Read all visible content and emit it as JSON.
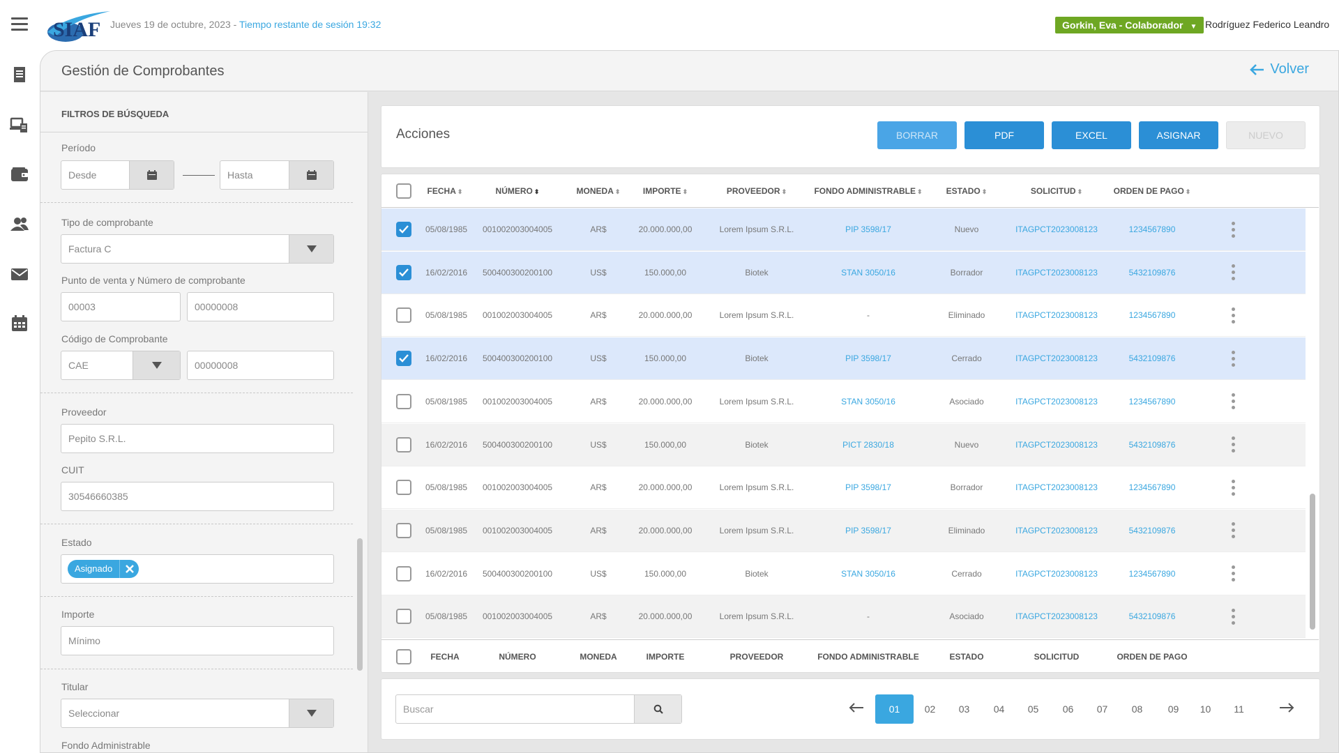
{
  "header": {
    "logo_text": "SIAF",
    "date": "Jueves 19 de octubre, 2023",
    "separator": " - ",
    "session": "Tiempo restante de sesión 19:32",
    "role_badge": "Gorkin, Eva - Colaborador",
    "user_name": "Rodríguez Federico Leandro"
  },
  "page": {
    "title": "Gestión de Comprobantes",
    "back_label": "Volver"
  },
  "filters": {
    "heading": "FILTROS DE BÚSQUEDA",
    "periodo_label": "Período",
    "desde_placeholder": "Desde",
    "hasta_placeholder": "Hasta",
    "tipo_label": "Tipo de comprobante",
    "tipo_value": "Factura C",
    "punto_label": "Punto de venta y Número de comprobante",
    "punto_value": "00003",
    "numero_value": "00000008",
    "codigo_label": "Código de Comprobante",
    "codigo_value": "CAE",
    "codigo_num_value": "00000008",
    "proveedor_label": "Proveedor",
    "proveedor_value": "Pepito S.R.L.",
    "cuit_label": "CUIT",
    "cuit_value": "30546660385",
    "estado_label": "Estado",
    "estado_tag": "Asignado",
    "importe_label": "Importe",
    "importe_placeholder": "Mínimo",
    "titular_label": "Titular",
    "titular_value": "Seleccionar",
    "fondo_label": "Fondo Administrable"
  },
  "actions": {
    "title": "Acciones",
    "borrar": "BORRAR",
    "pdf": "PDF",
    "excel": "EXCEL",
    "asignar": "ASIGNAR",
    "nuevo": "NUEVO"
  },
  "table": {
    "columns": [
      "FECHA",
      "NÚMERO",
      "MONEDA",
      "IMPORTE",
      "PROVEEDOR",
      "FONDO ADMINISTRABLE",
      "ESTADO",
      "SOLICITUD",
      "ORDEN DE PAGO"
    ],
    "rows": [
      {
        "checked": true,
        "fecha": "05/08/1985",
        "numero": "001002003004005",
        "moneda": "AR$",
        "importe": "20.000.000,00",
        "proveedor": "Lorem Ipsum S.R.L.",
        "fondo": "PIP 3598/17",
        "estado": "Nuevo",
        "solicitud": "ITAGPCT2023008123",
        "orden": "1234567890"
      },
      {
        "checked": true,
        "fecha": "16/02/2016",
        "numero": "500400300200100",
        "moneda": "US$",
        "importe": "150.000,00",
        "proveedor": "Biotek",
        "fondo": "STAN 3050/16",
        "estado": "Borrador",
        "solicitud": "ITAGPCT2023008123",
        "orden": "5432109876"
      },
      {
        "checked": false,
        "fecha": "05/08/1985",
        "numero": "001002003004005",
        "moneda": "AR$",
        "importe": "20.000.000,00",
        "proveedor": "Lorem Ipsum S.R.L.",
        "fondo": "-",
        "estado": "Eliminado",
        "solicitud": "ITAGPCT2023008123",
        "orden": "1234567890"
      },
      {
        "checked": true,
        "fecha": "16/02/2016",
        "numero": "500400300200100",
        "moneda": "US$",
        "importe": "150.000,00",
        "proveedor": "Biotek",
        "fondo": "PIP 3598/17",
        "estado": "Cerrado",
        "solicitud": "ITAGPCT2023008123",
        "orden": "5432109876"
      },
      {
        "checked": false,
        "fecha": "05/08/1985",
        "numero": "001002003004005",
        "moneda": "AR$",
        "importe": "20.000.000,00",
        "proveedor": "Lorem Ipsum S.R.L.",
        "fondo": "STAN 3050/16",
        "estado": "Asociado",
        "solicitud": "ITAGPCT2023008123",
        "orden": "1234567890"
      },
      {
        "checked": false,
        "fecha": "16/02/2016",
        "numero": "500400300200100",
        "moneda": "US$",
        "importe": "150.000,00",
        "proveedor": "Biotek",
        "fondo": "PICT 2830/18",
        "estado": "Nuevo",
        "solicitud": "ITAGPCT2023008123",
        "orden": "5432109876"
      },
      {
        "checked": false,
        "fecha": "05/08/1985",
        "numero": "001002003004005",
        "moneda": "AR$",
        "importe": "20.000.000,00",
        "proveedor": "Lorem Ipsum S.R.L.",
        "fondo": "PIP 3598/17",
        "estado": "Borrador",
        "solicitud": "ITAGPCT2023008123",
        "orden": "1234567890"
      },
      {
        "checked": false,
        "fecha": "05/08/1985",
        "numero": "001002003004005",
        "moneda": "AR$",
        "importe": "20.000.000,00",
        "proveedor": "Lorem Ipsum S.R.L.",
        "fondo": "PIP 3598/17",
        "estado": "Eliminado",
        "solicitud": "ITAGPCT2023008123",
        "orden": "5432109876"
      },
      {
        "checked": false,
        "fecha": "16/02/2016",
        "numero": "500400300200100",
        "moneda": "US$",
        "importe": "150.000,00",
        "proveedor": "Biotek",
        "fondo": "STAN 3050/16",
        "estado": "Cerrado",
        "solicitud": "ITAGPCT2023008123",
        "orden": "1234567890"
      },
      {
        "checked": false,
        "fecha": "05/08/1985",
        "numero": "001002003004005",
        "moneda": "AR$",
        "importe": "20.000.000,00",
        "proveedor": "Lorem Ipsum S.R.L.",
        "fondo": "-",
        "estado": "Asociado",
        "solicitud": "ITAGPCT2023008123",
        "orden": "5432109876"
      }
    ]
  },
  "pagination": {
    "search_placeholder": "Buscar",
    "pages": [
      "01",
      "02",
      "03",
      "04",
      "05",
      "06",
      "07",
      "08",
      "09",
      "10",
      "11"
    ],
    "active_page": "01"
  },
  "colors": {
    "accent": "#3aa7e0",
    "button": "#2b8fd6",
    "badge": "#6ea723",
    "selected_row": "#dce8fb",
    "striped_row": "#f2f2f2"
  }
}
